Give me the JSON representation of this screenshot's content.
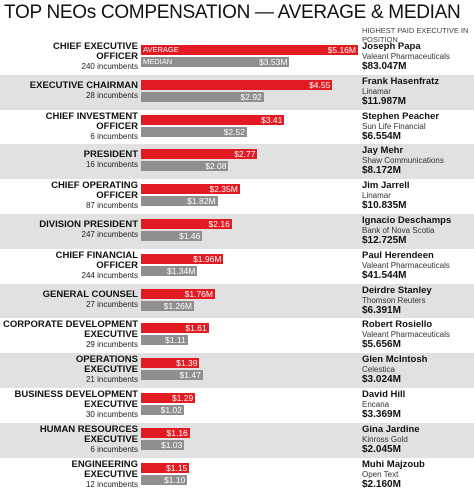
{
  "chart_data": {
    "type": "bar",
    "title": "TOP NEOs COMPENSATION — AVERAGE & MEDIAN",
    "legend": [
      "AVERAGE",
      "MEDIAN"
    ],
    "units": "$M",
    "highest_paid_header": "HIGHEST PAID EXECUTIVE IN POSITION",
    "colors": {
      "average": "#e21b23",
      "median": "#8f8f8f",
      "shade": "#e1e1e1"
    },
    "rows": [
      {
        "position": "CHIEF EXECUTIVE OFFICER",
        "incumbents": "240 incumbents",
        "average": 5.16,
        "average_label": "$5.16M",
        "median": 3.53,
        "median_label": "$3.53M",
        "exec": "Joseph Papa",
        "company": "Valeant Pharmaceuticals",
        "pay": "$83.047M"
      },
      {
        "position": "EXECUTIVE CHAIRMAN",
        "incumbents": "28 incumbents",
        "average": 4.55,
        "average_label": "$4.55",
        "median": 2.92,
        "median_label": "$2.92",
        "exec": "Frank Hasenfratz",
        "company": "Linamar",
        "pay": "$11.987M"
      },
      {
        "position": "CHIEF INVESTMENT OFFICER",
        "incumbents": "6 incumbents",
        "average": 3.41,
        "average_label": "$3.41",
        "median": 2.52,
        "median_label": "$2.52",
        "exec": "Stephen Peacher",
        "company": "Sun Life Financial",
        "pay": "$6.554M"
      },
      {
        "position": "PRESIDENT",
        "incumbents": "16 incumbents",
        "average": 2.77,
        "average_label": "$2.77",
        "median": 2.08,
        "median_label": "$2.08",
        "exec": "Jay Mehr",
        "company": "Shaw Communications",
        "pay": "$8.172M"
      },
      {
        "position": "CHIEF OPERATING OFFICER",
        "incumbents": "87 incumbents",
        "average": 2.35,
        "average_label": "$2.35M",
        "median": 1.82,
        "median_label": "$1.82M",
        "exec": "Jim Jarrell",
        "company": "Linamar",
        "pay": "$10.835M"
      },
      {
        "position": "DIVISION PRESIDENT",
        "incumbents": "247 incumbents",
        "average": 2.16,
        "average_label": "$2.16",
        "median": 1.46,
        "median_label": "$1.46",
        "exec": "Ignacio Deschamps",
        "company": "Bank of Nova Scotia",
        "pay": "$12.725M"
      },
      {
        "position": "CHIEF FINANCIAL OFFICER",
        "incumbents": "244 incumbents",
        "average": 1.96,
        "average_label": "$1.96M",
        "median": 1.34,
        "median_label": "$1.34M",
        "exec": "Paul Herendeen",
        "company": "Valeant Pharmaceuticals",
        "pay": "$41.544M"
      },
      {
        "position": "GENERAL COUNSEL",
        "incumbents": "27 incumbents",
        "average": 1.76,
        "average_label": "$1.76M",
        "median": 1.26,
        "median_label": "$1.26M",
        "exec": "Deirdre Stanley",
        "company": "Thomson Reuters",
        "pay": "$6.391M"
      },
      {
        "position": "CORPORATE DEVELOPMENT EXECUTIVE",
        "incumbents": "29 incumbents",
        "average": 1.61,
        "average_label": "$1.61",
        "median": 1.11,
        "median_label": "$1.11",
        "exec": "Robert Rosiello",
        "company": "Valeant Pharmaceuticals",
        "pay": "$5.656M"
      },
      {
        "position": "OPERATIONS EXECUTIVE",
        "incumbents": "21 incumbents",
        "average": 1.39,
        "average_label": "$1.39",
        "median": 1.47,
        "median_label": "$1.47",
        "exec": "Glen McIntosh",
        "company": "Celestica",
        "pay": "$3.024M"
      },
      {
        "position": "BUSINESS DEVELOPMENT EXECUTIVE",
        "incumbents": "30 incumbents",
        "average": 1.29,
        "average_label": "$1.29",
        "median": 1.02,
        "median_label": "$1.02",
        "exec": "David Hill",
        "company": "Encana",
        "pay": "$3.369M"
      },
      {
        "position": "HUMAN RESOURCES EXECUTIVE",
        "incumbents": "6 incumbents",
        "average": 1.16,
        "average_label": "$1.16",
        "median": 1.03,
        "median_label": "$1.03",
        "exec": "Gina Jardine",
        "company": "Kinross Gold",
        "pay": "$2.045M"
      },
      {
        "position": "ENGINEERING EXECUTIVE",
        "incumbents": "12 incumbents",
        "average": 1.15,
        "average_label": "$1.15",
        "median": 1.1,
        "median_label": "$1.10",
        "exec": "Muhi Majzoub",
        "company": "Open Text",
        "pay": "$2.160M"
      }
    ]
  }
}
